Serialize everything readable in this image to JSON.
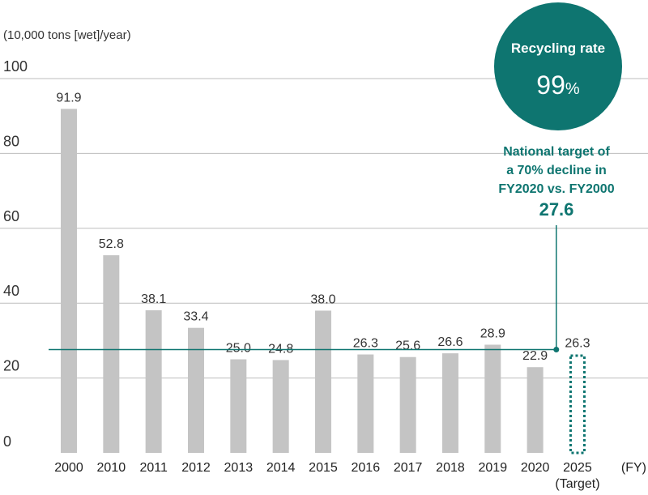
{
  "chart_data": {
    "type": "bar",
    "ylabel": "(10,000 tons [wet]/year)",
    "xlabel": "(FY)",
    "ylim": [
      0,
      100
    ],
    "yticks": [
      "0",
      "20",
      "40",
      "60",
      "80",
      "100"
    ],
    "grid": true,
    "categories": [
      "2000",
      "2010",
      "2011",
      "2012",
      "2013",
      "2014",
      "2015",
      "2016",
      "2017",
      "2018",
      "2019",
      "2020",
      "2025"
    ],
    "category_sublabels": {
      "2025": "(Target)"
    },
    "values": [
      91.9,
      52.8,
      38.1,
      33.4,
      25.0,
      24.8,
      38.0,
      26.3,
      25.6,
      26.6,
      28.9,
      22.9,
      26.3
    ],
    "value_labels": [
      "91.9",
      "52.8",
      "38.1",
      "33.4",
      "25.0",
      "24.8",
      "38.0",
      "26.3",
      "25.6",
      "26.6",
      "28.9",
      "22.9",
      "26.3"
    ],
    "target_bar_index": 12,
    "reference_line": {
      "value": 27.6,
      "value_label": "27.6",
      "label_lines": [
        "National target of",
        "a 70% decline in",
        "FY2020 vs. FY2000"
      ]
    },
    "badge": {
      "label": "Recycling rate",
      "value": "99",
      "unit": "%"
    },
    "colors": {
      "bar": "#c4c4c4",
      "target_outline": "#0e7570",
      "reference_line": "#0e7570",
      "badge": "#0e7570",
      "grid": "#bdbdbd"
    }
  }
}
